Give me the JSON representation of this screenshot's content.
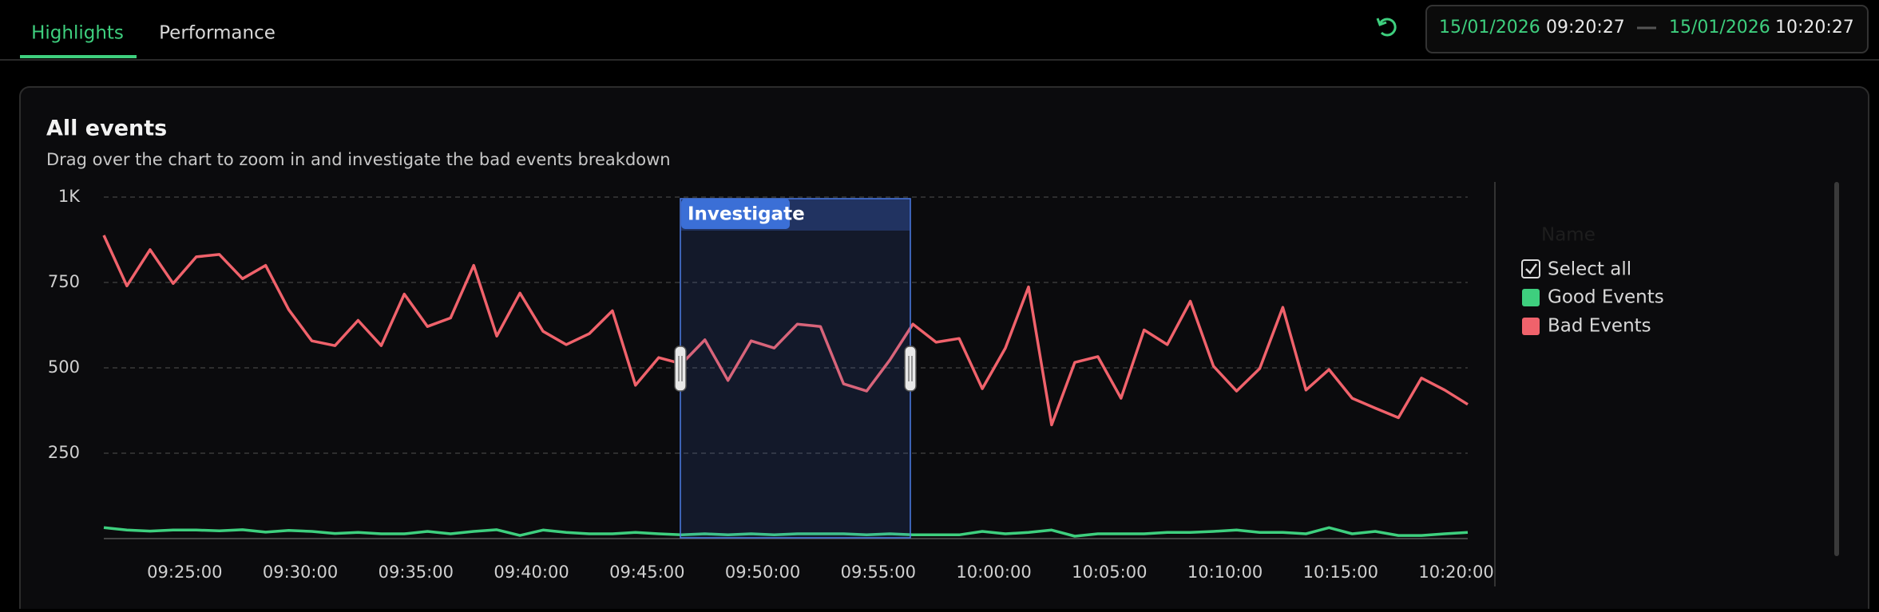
{
  "tabs": [
    "Highlights",
    "Performance"
  ],
  "date_range": {
    "start_date": "15/01/2026",
    "start_time": "09:20:27",
    "end_date": "15/01/2026",
    "end_time": "10:20:27"
  },
  "card": {
    "title": "All events",
    "subtitle": "Drag over the chart to zoom in and investigate the bad events breakdown",
    "selection_label": "Investigate"
  },
  "legend": {
    "header": "Name",
    "select_all": "Select all"
  },
  "chart_data": {
    "type": "line",
    "x": [
      "09:21:30",
      "09:22:30",
      "09:23:30",
      "09:24:30",
      "09:25:30",
      "09:26:30",
      "09:27:30",
      "09:28:30",
      "09:29:30",
      "09:30:30",
      "09:31:30",
      "09:32:30",
      "09:33:30",
      "09:34:30",
      "09:35:30",
      "09:36:30",
      "09:37:30",
      "09:38:30",
      "09:39:30",
      "09:40:30",
      "09:41:30",
      "09:42:30",
      "09:43:30",
      "09:44:30",
      "09:45:30",
      "09:46:30",
      "09:47:30",
      "09:48:30",
      "09:49:30",
      "09:50:30",
      "09:51:30",
      "09:52:30",
      "09:53:30",
      "09:54:30",
      "09:55:30",
      "09:56:30",
      "09:57:30",
      "09:58:30",
      "09:59:30",
      "10:00:30",
      "10:01:30",
      "10:02:30",
      "10:03:30",
      "10:04:30",
      "10:05:30",
      "10:06:30",
      "10:07:30",
      "10:08:30",
      "10:09:30",
      "10:10:30",
      "10:11:30",
      "10:12:30",
      "10:13:30",
      "10:14:30",
      "10:15:30",
      "10:16:30",
      "10:17:30",
      "10:18:30",
      "10:19:30",
      "10:20:30"
    ],
    "xlim": [
      "09:21:30",
      "10:20:30"
    ],
    "xticks": [
      "09:25:00",
      "09:30:00",
      "09:35:00",
      "09:40:00",
      "09:45:00",
      "09:50:00",
      "09:55:00",
      "10:00:00",
      "10:05:00",
      "10:10:00",
      "10:15:00",
      "10:20:00"
    ],
    "ylim": [
      0,
      1000
    ],
    "yticks": [
      {
        "value": 1000,
        "label": "1K"
      },
      750,
      500,
      250
    ],
    "grid": true,
    "series": [
      {
        "name": "Good Events",
        "color": "#3ecf7e",
        "values": [
          32,
          25,
          22,
          25,
          25,
          23,
          26,
          19,
          24,
          21,
          15,
          18,
          14,
          14,
          21,
          14,
          21,
          26,
          9,
          25,
          18,
          14,
          14,
          18,
          14,
          11,
          14,
          11,
          14,
          11,
          14,
          14,
          14,
          11,
          14,
          11,
          11,
          11,
          21,
          14,
          18,
          25,
          7,
          14,
          14,
          14,
          18,
          18,
          21,
          25,
          18,
          18,
          14,
          32,
          14,
          21,
          9,
          9,
          14,
          18
        ]
      },
      {
        "name": "Bad Events",
        "color": "#f0626b",
        "values": [
          888,
          740,
          846,
          747,
          825,
          832,
          761,
          800,
          670,
          579,
          565,
          639,
          565,
          716,
          621,
          646,
          800,
          593,
          719,
          607,
          568,
          600,
          667,
          449,
          530,
          512,
          582,
          463,
          579,
          558,
          628,
          621,
          453,
          432,
          523,
          628,
          575,
          586,
          439,
          558,
          737,
          333,
          516,
          533,
          411,
          611,
          568,
          695,
          505,
          432,
          498,
          677,
          435,
          495,
          411,
          382,
          354,
          470,
          435,
          393
        ]
      }
    ]
  }
}
